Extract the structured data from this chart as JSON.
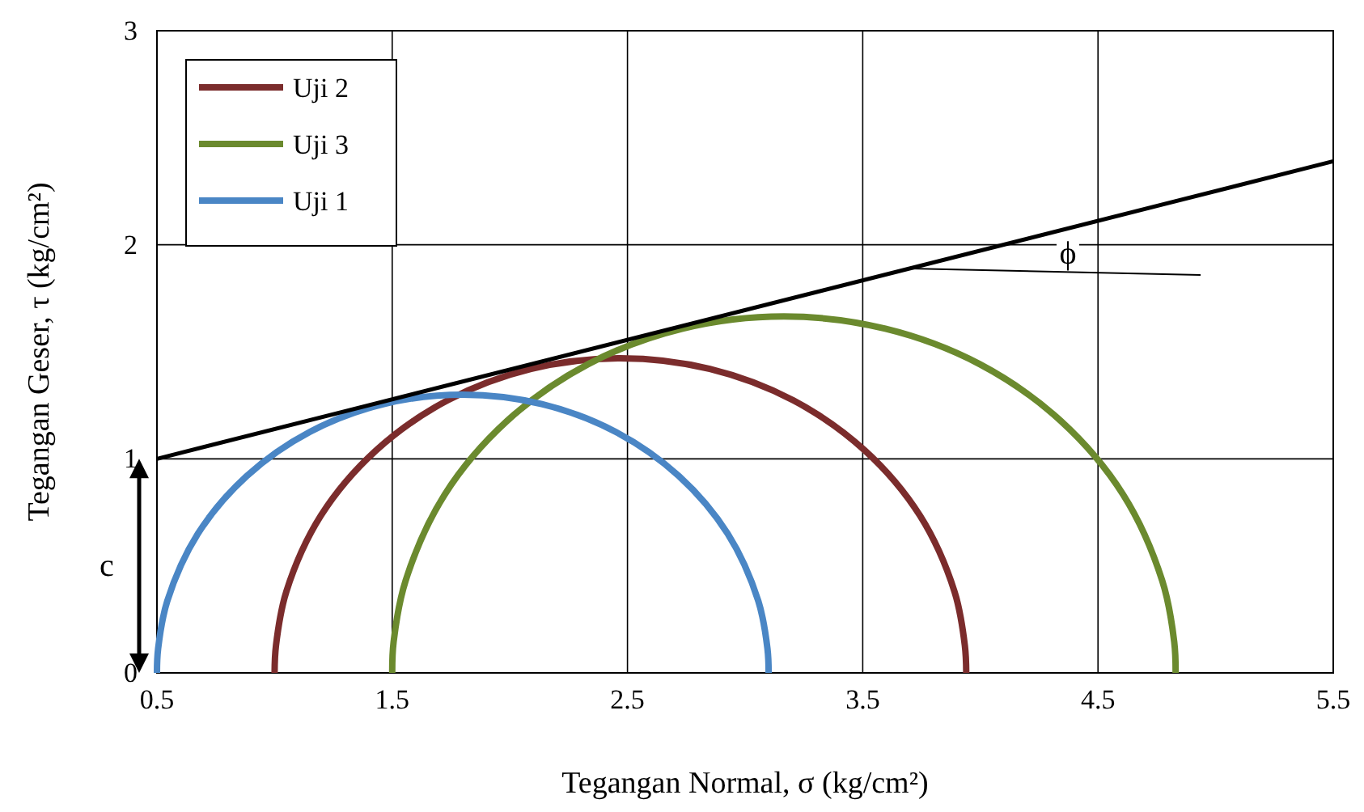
{
  "chart_data": {
    "type": "line",
    "xlabel": "Tegangan Normal, σ (kg/cm²)",
    "ylabel": "Tegangan Geser, τ (kg/cm²)",
    "xlim": [
      0.5,
      5.5
    ],
    "xticks": [
      0.5,
      1.5,
      2.5,
      3.5,
      4.5,
      5.5
    ],
    "ylim": [
      0,
      3
    ],
    "yticks": [
      0,
      1,
      2,
      3
    ],
    "grid": true,
    "legend": "top left",
    "series": [
      {
        "name": "Uji 2",
        "color": "#7b2c2c",
        "x": [
          1.0,
          1.006,
          1.05,
          1.197,
          1.431,
          1.735,
          2.09,
          2.47,
          2.85,
          3.205,
          3.509,
          3.743,
          3.89,
          3.934,
          3.94
        ],
        "values": [
          0,
          0.128,
          0.38,
          0.735,
          1.039,
          1.273,
          1.42,
          1.47,
          1.42,
          1.273,
          1.039,
          0.735,
          0.38,
          0.128,
          0
        ]
      },
      {
        "name": "Uji 3",
        "color": "#6b8a2e",
        "x": [
          1.5,
          1.506,
          1.557,
          1.723,
          1.988,
          2.332,
          2.734,
          3.165,
          3.596,
          3.998,
          4.342,
          4.607,
          4.773,
          4.824,
          4.83
        ],
        "values": [
          0,
          0.145,
          0.431,
          0.833,
          1.177,
          1.442,
          1.608,
          1.665,
          1.608,
          1.442,
          1.177,
          0.833,
          0.431,
          0.145,
          0
        ]
      },
      {
        "name": "Uji 1",
        "color": "#4a86c5",
        "x": [
          0.5,
          0.505,
          0.544,
          0.674,
          0.881,
          1.15,
          1.464,
          1.8,
          2.136,
          2.45,
          2.719,
          2.926,
          3.056,
          3.095,
          3.1
        ],
        "values": [
          0,
          0.113,
          0.336,
          0.65,
          0.919,
          1.126,
          1.256,
          1.3,
          1.256,
          1.126,
          0.919,
          0.65,
          0.336,
          0.113,
          0
        ]
      },
      {
        "color": "#000000",
        "x": [
          0.5,
          5.5
        ],
        "values": [
          1.0,
          2.39
        ]
      }
    ],
    "annotations": [
      "ϕ",
      "c"
    ]
  }
}
